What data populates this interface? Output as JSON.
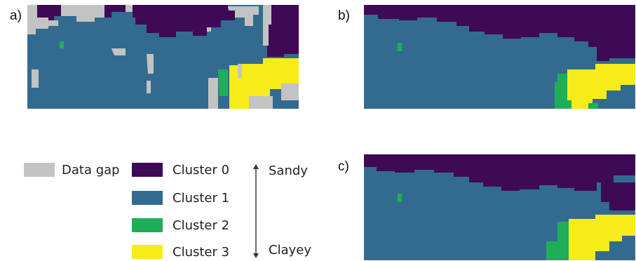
{
  "panels": [
    {
      "id": "a",
      "label": "a)"
    },
    {
      "id": "b",
      "label": "b)"
    },
    {
      "id": "c",
      "label": "c)"
    }
  ],
  "legend": {
    "gap_label": "Data gap",
    "gap_color": "#c3c3c3",
    "items": [
      {
        "label": "Cluster 0",
        "color": "#3f0a55"
      },
      {
        "label": "Cluster 1",
        "color": "#336b90"
      },
      {
        "label": "Cluster 2",
        "color": "#1fae58"
      },
      {
        "label": "Cluster 3",
        "color": "#f5ec19"
      }
    ]
  },
  "scale": {
    "top_label": "Sandy",
    "bottom_label": "Clayey"
  }
}
